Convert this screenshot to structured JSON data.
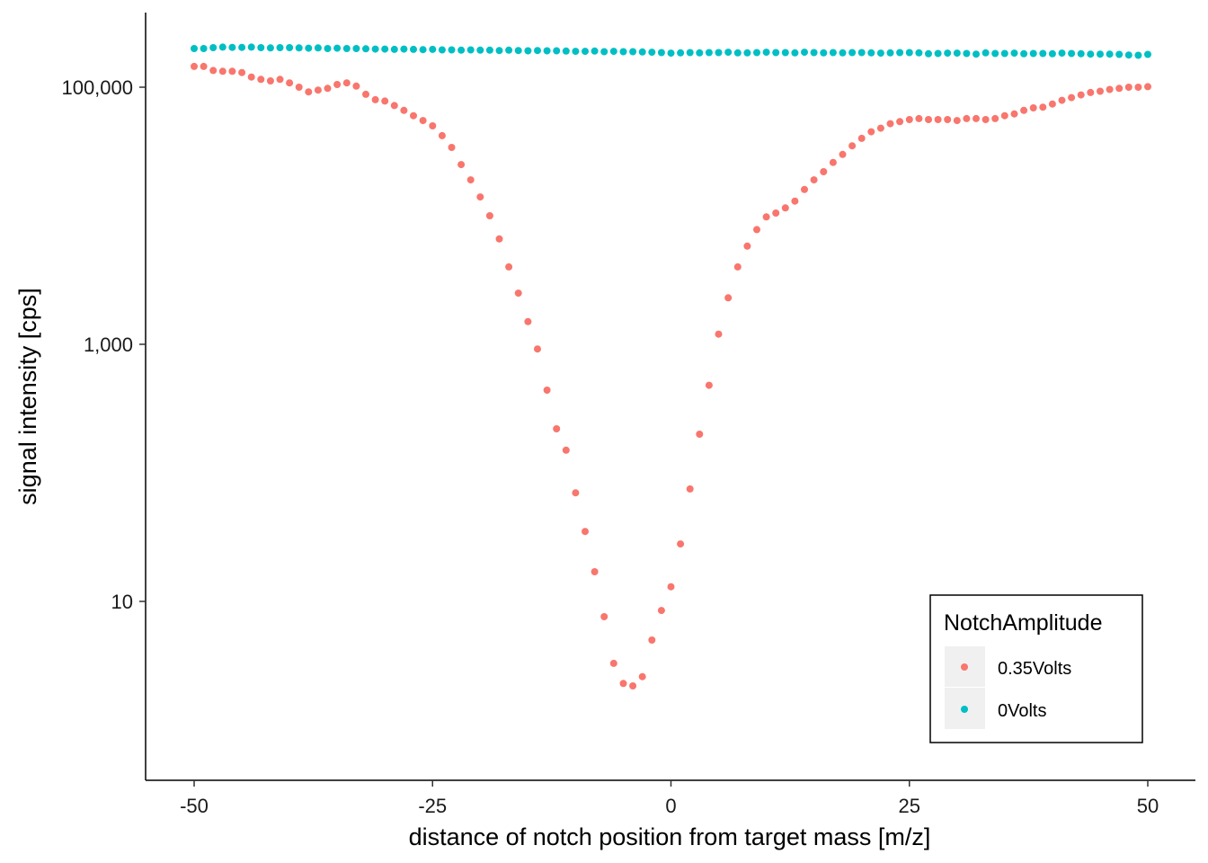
{
  "chart_data": {
    "type": "scatter",
    "title": "",
    "xlabel": "distance of notch position from target mass [m/z]",
    "ylabel": "signal intensity [cps]",
    "xlim": [
      -55,
      55
    ],
    "ylim": [
      1.8,
      280000
    ],
    "y_scale": "log10",
    "grid": false,
    "legend_placement": "bottom-right",
    "x_ticks": [
      -50,
      -25,
      0,
      25,
      50
    ],
    "x_tick_labels": [
      "-50",
      "-25",
      "0",
      "25",
      "50"
    ],
    "y_ticks": [
      10,
      1000,
      100000
    ],
    "y_tick_labels": [
      "10",
      "1,000",
      "100,000"
    ],
    "legend": {
      "title": "NotchAmplitude",
      "entries": [
        "0.35Volts",
        "0Volts"
      ]
    },
    "series": [
      {
        "name": "0.35Volts",
        "color": "#F8766D",
        "x": [
          -50,
          -49,
          -48,
          -47,
          -46,
          -45,
          -44,
          -43,
          -42,
          -41,
          -40,
          -39,
          -38,
          -37,
          -36,
          -35,
          -34,
          -33,
          -32,
          -31,
          -30,
          -29,
          -28,
          -27,
          -26,
          -25,
          -24,
          -23,
          -22,
          -21,
          -20,
          -19,
          -18,
          -17,
          -16,
          -15,
          -14,
          -13,
          -12,
          -11,
          -10,
          -9,
          -8,
          -7,
          -6,
          -5,
          -4,
          -3,
          -2,
          -1,
          0,
          1,
          2,
          3,
          4,
          5,
          6,
          7,
          8,
          9,
          10,
          11,
          12,
          13,
          14,
          15,
          16,
          17,
          18,
          19,
          20,
          21,
          22,
          23,
          24,
          25,
          26,
          27,
          28,
          29,
          30,
          31,
          32,
          33,
          34,
          35,
          36,
          37,
          38,
          39,
          40,
          41,
          42,
          43,
          44,
          45,
          46,
          47,
          48,
          49,
          50
        ],
        "y": [
          145000,
          145000,
          135000,
          133000,
          133000,
          130000,
          120000,
          115000,
          112000,
          115000,
          108000,
          100000,
          92000,
          95000,
          98000,
          105000,
          108000,
          102000,
          88000,
          80000,
          78000,
          72000,
          66000,
          60000,
          55000,
          50000,
          42000,
          34000,
          25000,
          19000,
          14000,
          10000,
          6600,
          4000,
          2500,
          1500,
          920,
          440,
          220,
          150,
          70,
          35,
          17,
          7.6,
          3.3,
          2.3,
          2.2,
          2.6,
          5.0,
          8.5,
          13,
          28,
          75,
          200,
          480,
          1200,
          2300,
          4000,
          5800,
          7800,
          9800,
          10500,
          11500,
          13000,
          16000,
          19000,
          22000,
          26000,
          30000,
          35000,
          40000,
          45000,
          48000,
          52000,
          54000,
          56000,
          57000,
          56000,
          56000,
          56000,
          55000,
          57000,
          57000,
          56000,
          57000,
          60000,
          62000,
          66000,
          69000,
          70000,
          74000,
          79000,
          83000,
          87000,
          91000,
          93000,
          96000,
          98000,
          100000,
          100000,
          101000
        ]
      },
      {
        "name": "0Volts",
        "color": "#00BFC4",
        "x": [
          -50,
          -49,
          -48,
          -47,
          -46,
          -45,
          -44,
          -43,
          -42,
          -41,
          -40,
          -39,
          -38,
          -37,
          -36,
          -35,
          -34,
          -33,
          -32,
          -31,
          -30,
          -29,
          -28,
          -27,
          -26,
          -25,
          -24,
          -23,
          -22,
          -21,
          -20,
          -19,
          -18,
          -17,
          -16,
          -15,
          -14,
          -13,
          -12,
          -11,
          -10,
          -9,
          -8,
          -7,
          -6,
          -5,
          -4,
          -3,
          -2,
          -1,
          0,
          1,
          2,
          3,
          4,
          5,
          6,
          7,
          8,
          9,
          10,
          11,
          12,
          13,
          14,
          15,
          16,
          17,
          18,
          19,
          20,
          21,
          22,
          23,
          24,
          25,
          26,
          27,
          28,
          29,
          30,
          31,
          32,
          33,
          34,
          35,
          36,
          37,
          38,
          39,
          40,
          41,
          42,
          43,
          44,
          45,
          46,
          47,
          48,
          49,
          50
        ],
        "y": [
          200000,
          200000,
          203000,
          205000,
          204000,
          204000,
          205000,
          203000,
          202000,
          203000,
          203000,
          202000,
          201000,
          202000,
          200000,
          201000,
          200000,
          200000,
          199000,
          198000,
          198000,
          197000,
          198000,
          197000,
          196000,
          197000,
          195000,
          195000,
          194000,
          195000,
          194000,
          194000,
          193000,
          194000,
          193000,
          192000,
          193000,
          192000,
          192000,
          191000,
          190000,
          190000,
          191000,
          189000,
          190000,
          189000,
          189000,
          188000,
          187000,
          186000,
          184000,
          185000,
          186000,
          185000,
          186000,
          186000,
          187000,
          185000,
          185000,
          186000,
          187000,
          186000,
          186000,
          185000,
          187000,
          186000,
          185000,
          186000,
          185000,
          186000,
          186000,
          185000,
          184000,
          185000,
          186000,
          186000,
          185000,
          182000,
          183000,
          184000,
          184000,
          183000,
          181000,
          185000,
          183000,
          183000,
          184000,
          182000,
          183000,
          183000,
          182000,
          184000,
          183000,
          182000,
          181000,
          181000,
          181000,
          180000,
          178000,
          177000,
          180000
        ]
      }
    ]
  }
}
